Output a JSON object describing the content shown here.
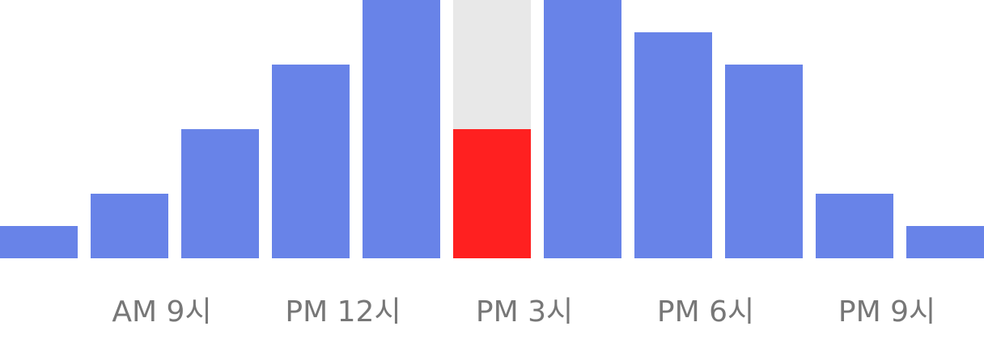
{
  "chart_data": {
    "type": "bar",
    "categories": [
      "",
      "",
      "",
      "",
      "",
      "",
      "",
      "",
      "",
      "",
      ""
    ],
    "values": [
      1,
      2,
      4,
      6,
      8,
      4,
      8,
      7,
      6,
      2,
      1
    ],
    "capacity": [
      null,
      null,
      null,
      null,
      null,
      8,
      null,
      null,
      null,
      null,
      null
    ],
    "highlight_index": 5,
    "ylim": [
      0,
      8
    ],
    "tick_labels": [
      {
        "index": 1,
        "label": "AM 9시"
      },
      {
        "index": 3,
        "label": "PM 12시"
      },
      {
        "index": 5,
        "label": "PM 3시"
      },
      {
        "index": 7,
        "label": "PM 6시"
      },
      {
        "index": 9,
        "label": "PM 9시"
      }
    ],
    "colors": {
      "bar": "#6883e8",
      "highlight": "#ff2020",
      "capacity": "#e8e8e8",
      "tick_text": "#777777"
    },
    "grid": false,
    "legend": "none"
  }
}
